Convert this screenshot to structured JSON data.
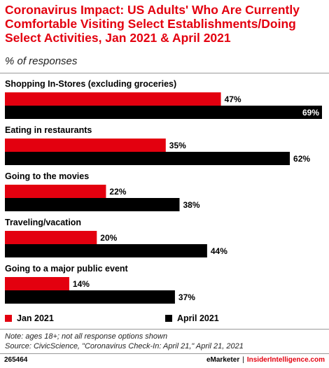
{
  "header": {
    "title": "Coronavirus Impact: US Adults' Who Are Currently Comfortable Visiting Select Establishments/Doing Select Activities, Jan 2021 & April 2021",
    "subtitle": "% of responses"
  },
  "chart_data": {
    "type": "bar",
    "orientation": "horizontal",
    "categories": [
      "Shopping In-Stores (excluding groceries)",
      "Eating in restaurants",
      "Going to the movies",
      "Traveling/vacation",
      "Going to a major public event"
    ],
    "series": [
      {
        "name": "Jan 2021",
        "values": [
          47,
          35,
          22,
          20,
          14
        ],
        "color": "#e3000f"
      },
      {
        "name": "April 2021",
        "values": [
          69,
          62,
          38,
          44,
          37
        ],
        "color": "#000000"
      }
    ],
    "value_suffix": "%",
    "grid": false,
    "legend_position": "bottom"
  },
  "legend": {
    "jan_label": "Jan 2021",
    "apr_label": "April 2021"
  },
  "notes": {
    "note": "Note: ages 18+; not all response options shown",
    "source": "Source: CivicScience, \"Coronavirus Check-In: April 21,\" April 21, 2021"
  },
  "footer": {
    "id": "265464",
    "brand": "eMarketer",
    "brand2": "InsiderIntelligence.com"
  }
}
